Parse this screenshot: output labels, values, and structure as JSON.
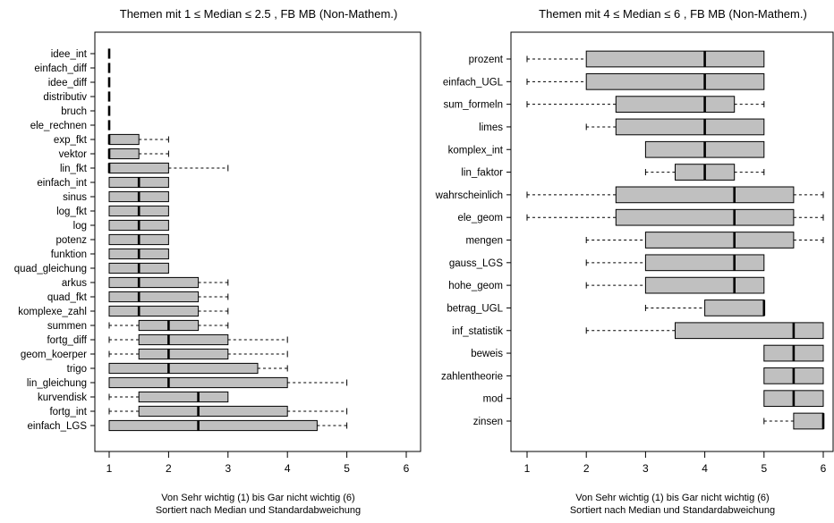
{
  "chart_data": [
    {
      "type": "boxplot",
      "orientation": "horizontal",
      "title": "Themen mit  1 ≤ Median ≤ 2.5 , FB MB  (Non-Mathem.)",
      "xlabel": "Von Sehr wichtig (1) bis Gar nicht wichtig (6)",
      "xlabel2": "Sortiert nach Median und Standardabweichung",
      "xlim": [
        1,
        6
      ],
      "xticks": [
        1,
        2,
        3,
        4,
        5,
        6
      ],
      "box_color": "#c0c0c0",
      "categories": [
        {
          "label": "idee_int",
          "min": 1,
          "q1": 1,
          "median": 1,
          "q3": 1,
          "max": 1
        },
        {
          "label": "einfach_diff",
          "min": 1,
          "q1": 1,
          "median": 1,
          "q3": 1,
          "max": 1
        },
        {
          "label": "idee_diff",
          "min": 1,
          "q1": 1,
          "median": 1,
          "q3": 1,
          "max": 1
        },
        {
          "label": "distributiv",
          "min": 1,
          "q1": 1,
          "median": 1,
          "q3": 1,
          "max": 1
        },
        {
          "label": "bruch",
          "min": 1,
          "q1": 1,
          "median": 1,
          "q3": 1,
          "max": 1
        },
        {
          "label": "ele_rechnen",
          "min": 1,
          "q1": 1,
          "median": 1,
          "q3": 1,
          "max": 1
        },
        {
          "label": "exp_fkt",
          "min": 1,
          "q1": 1,
          "median": 1,
          "q3": 1.5,
          "max": 2
        },
        {
          "label": "vektor",
          "min": 1,
          "q1": 1,
          "median": 1,
          "q3": 1.5,
          "max": 2
        },
        {
          "label": "lin_fkt",
          "min": 1,
          "q1": 1,
          "median": 1,
          "q3": 2,
          "max": 3
        },
        {
          "label": "einfach_int",
          "min": 1,
          "q1": 1,
          "median": 1.5,
          "q3": 2,
          "max": 2
        },
        {
          "label": "sinus",
          "min": 1,
          "q1": 1,
          "median": 1.5,
          "q3": 2,
          "max": 2
        },
        {
          "label": "log_fkt",
          "min": 1,
          "q1": 1,
          "median": 1.5,
          "q3": 2,
          "max": 2
        },
        {
          "label": "log",
          "min": 1,
          "q1": 1,
          "median": 1.5,
          "q3": 2,
          "max": 2
        },
        {
          "label": "potenz",
          "min": 1,
          "q1": 1,
          "median": 1.5,
          "q3": 2,
          "max": 2
        },
        {
          "label": "funktion",
          "min": 1,
          "q1": 1,
          "median": 1.5,
          "q3": 2,
          "max": 2
        },
        {
          "label": "quad_gleichung",
          "min": 1,
          "q1": 1,
          "median": 1.5,
          "q3": 2,
          "max": 2
        },
        {
          "label": "arkus",
          "min": 1,
          "q1": 1,
          "median": 1.5,
          "q3": 2.5,
          "max": 3
        },
        {
          "label": "quad_fkt",
          "min": 1,
          "q1": 1,
          "median": 1.5,
          "q3": 2.5,
          "max": 3
        },
        {
          "label": "komplexe_zahl",
          "min": 1,
          "q1": 1,
          "median": 1.5,
          "q3": 2.5,
          "max": 3
        },
        {
          "label": "summen",
          "min": 1,
          "q1": 1.5,
          "median": 2,
          "q3": 2.5,
          "max": 3
        },
        {
          "label": "fortg_diff",
          "min": 1,
          "q1": 1.5,
          "median": 2,
          "q3": 3,
          "max": 4
        },
        {
          "label": "geom_koerper",
          "min": 1,
          "q1": 1.5,
          "median": 2,
          "q3": 3,
          "max": 4
        },
        {
          "label": "trigo",
          "min": 1,
          "q1": 1,
          "median": 2,
          "q3": 3.5,
          "max": 4
        },
        {
          "label": "lin_gleichung",
          "min": 1,
          "q1": 1,
          "median": 2,
          "q3": 4,
          "max": 5
        },
        {
          "label": "kurvendisk",
          "min": 1,
          "q1": 1.5,
          "median": 2.5,
          "q3": 3,
          "max": 3
        },
        {
          "label": "fortg_int",
          "min": 1,
          "q1": 1.5,
          "median": 2.5,
          "q3": 4,
          "max": 5
        },
        {
          "label": "einfach_LGS",
          "min": 1,
          "q1": 1,
          "median": 2.5,
          "q3": 4.5,
          "max": 5
        }
      ]
    },
    {
      "type": "boxplot",
      "orientation": "horizontal",
      "title": "Themen mit  4 ≤ Median ≤ 6 , FB MB  (Non-Mathem.)",
      "xlabel": "Von Sehr wichtig (1) bis Gar nicht wichtig (6)",
      "xlabel2": "Sortiert nach Median und Standardabweichung",
      "xlim": [
        1,
        6
      ],
      "xticks": [
        1,
        2,
        3,
        4,
        5,
        6
      ],
      "box_color": "#c0c0c0",
      "categories": [
        {
          "label": "prozent",
          "min": 1,
          "q1": 2,
          "median": 4,
          "q3": 5,
          "max": 5
        },
        {
          "label": "einfach_UGL",
          "min": 1,
          "q1": 2,
          "median": 4,
          "q3": 5,
          "max": 5
        },
        {
          "label": "sum_formeln",
          "min": 1,
          "q1": 2.5,
          "median": 4,
          "q3": 4.5,
          "max": 5
        },
        {
          "label": "limes",
          "min": 2,
          "q1": 2.5,
          "median": 4,
          "q3": 5,
          "max": 5
        },
        {
          "label": "komplex_int",
          "min": 3,
          "q1": 3,
          "median": 4,
          "q3": 5,
          "max": 5
        },
        {
          "label": "lin_faktor",
          "min": 3,
          "q1": 3.5,
          "median": 4,
          "q3": 4.5,
          "max": 5
        },
        {
          "label": "wahrscheinlich",
          "min": 1,
          "q1": 2.5,
          "median": 4.5,
          "q3": 5.5,
          "max": 6
        },
        {
          "label": "ele_geom",
          "min": 1,
          "q1": 2.5,
          "median": 4.5,
          "q3": 5.5,
          "max": 6
        },
        {
          "label": "mengen",
          "min": 2,
          "q1": 3,
          "median": 4.5,
          "q3": 5.5,
          "max": 6
        },
        {
          "label": "gauss_LGS",
          "min": 2,
          "q1": 3,
          "median": 4.5,
          "q3": 5,
          "max": 5
        },
        {
          "label": "hohe_geom",
          "min": 2,
          "q1": 3,
          "median": 4.5,
          "q3": 5,
          "max": 5
        },
        {
          "label": "betrag_UGL",
          "min": 3,
          "q1": 4,
          "median": 5,
          "q3": 5,
          "max": 5
        },
        {
          "label": "inf_statistik",
          "min": 2,
          "q1": 3.5,
          "median": 5.5,
          "q3": 6,
          "max": 6
        },
        {
          "label": "beweis",
          "min": 5,
          "q1": 5,
          "median": 5.5,
          "q3": 6,
          "max": 6
        },
        {
          "label": "zahlentheorie",
          "min": 5,
          "q1": 5,
          "median": 5.5,
          "q3": 6,
          "max": 6
        },
        {
          "label": "mod",
          "min": 5,
          "q1": 5,
          "median": 5.5,
          "q3": 6,
          "max": 6
        },
        {
          "label": "zinsen",
          "min": 5,
          "q1": 5.5,
          "median": 6,
          "q3": 6,
          "max": 6
        }
      ]
    }
  ]
}
